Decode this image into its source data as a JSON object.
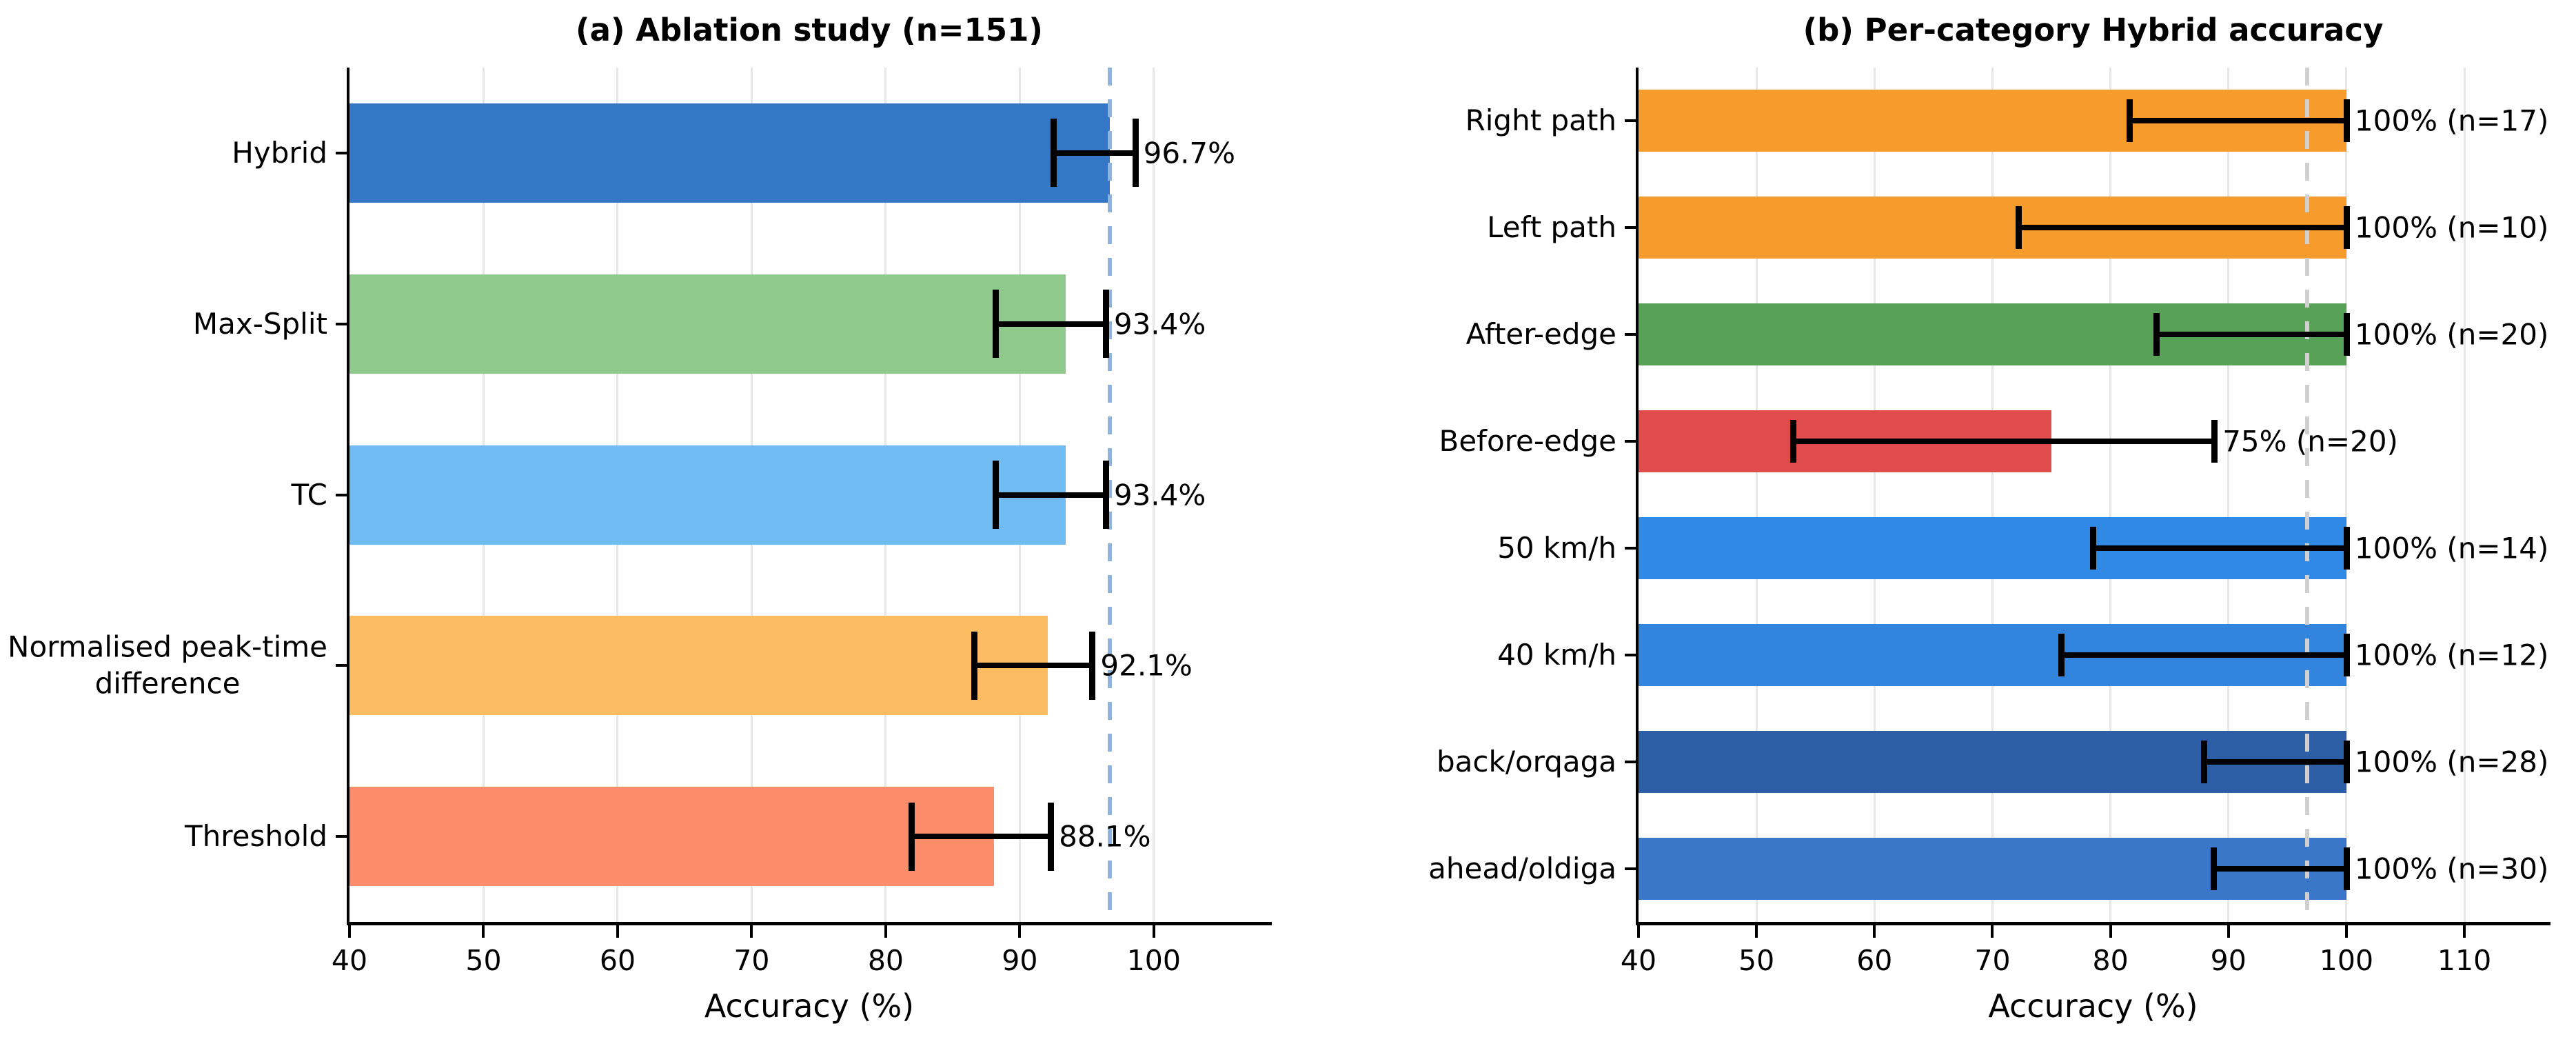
{
  "figure": {
    "background": "#ffffff",
    "error_bar_color": "#000000",
    "grid_color": "#e7e7e7",
    "spine_color": "#000000"
  },
  "chart_data": [
    {
      "type": "bar",
      "orientation": "horizontal",
      "title": "(a) Ablation study (n=151)",
      "xlabel": "Accuracy (%)",
      "xlim": [
        40,
        108.8
      ],
      "xticks": [
        40,
        50,
        60,
        70,
        80,
        90,
        100
      ],
      "grid": true,
      "legend": "none",
      "ref_line": {
        "value": 96.7,
        "color": "#8fb3dc",
        "style": "dashed"
      },
      "categories": [
        "Hybrid",
        "Max-Split",
        "TC",
        "Normalised peak-time\ndifference",
        "Threshold"
      ],
      "values": [
        96.7,
        93.4,
        93.4,
        92.1,
        88.1
      ],
      "rows": [
        {
          "category": "Hybrid",
          "value": 96.7,
          "label": "96.7%",
          "err_lo": 92.5,
          "err_hi": 98.6,
          "color": "#3377c6"
        },
        {
          "category": "Max-Split",
          "value": 93.4,
          "label": "93.4%",
          "err_lo": 88.2,
          "err_hi": 96.4,
          "color": "#8fc98b"
        },
        {
          "category": "TC",
          "value": 93.4,
          "label": "93.4%",
          "err_lo": 88.2,
          "err_hi": 96.4,
          "color": "#70bcf2"
        },
        {
          "category": "Normalised peak-time\ndifference",
          "value": 92.1,
          "label": "92.1%",
          "err_lo": 86.6,
          "err_hi": 95.4,
          "color": "#fcbd62"
        },
        {
          "category": "Threshold",
          "value": 88.1,
          "label": "88.1%",
          "err_lo": 81.9,
          "err_hi": 92.3,
          "color": "#fb8d6a"
        }
      ]
    },
    {
      "type": "bar",
      "orientation": "horizontal",
      "title": "(b) Per-category Hybrid accuracy",
      "xlabel": "Accuracy (%)",
      "xlim": [
        40,
        117.3
      ],
      "xticks": [
        40,
        50,
        60,
        70,
        80,
        90,
        100,
        110
      ],
      "grid": true,
      "legend": "none",
      "ref_line": {
        "value": 96.7,
        "color": "#d0d0d0",
        "style": "dashed"
      },
      "categories": [
        "Right path",
        "Left path",
        "After-edge",
        "Before-edge",
        "50 km/h",
        "40 km/h",
        "back/orqaga",
        "ahead/oldiga"
      ],
      "values": [
        100,
        100,
        100,
        75,
        100,
        100,
        100,
        100
      ],
      "rows": [
        {
          "category": "Right path",
          "value": 100,
          "n": 17,
          "label": "100% (n=17)",
          "err_lo": 81.6,
          "err_hi": 100,
          "color": "#f89b2d"
        },
        {
          "category": "Left path",
          "value": 100,
          "n": 10,
          "label": "100% (n=10)",
          "err_lo": 72.2,
          "err_hi": 100,
          "color": "#f89b2d"
        },
        {
          "category": "After-edge",
          "value": 100,
          "n": 20,
          "label": "100% (n=20)",
          "err_lo": 83.9,
          "err_hi": 100,
          "color": "#57a257"
        },
        {
          "category": "Before-edge",
          "value": 75,
          "n": 20,
          "label": "75% (n=20)",
          "err_lo": 53.1,
          "err_hi": 88.8,
          "color": "#e04b4b"
        },
        {
          "category": "50 km/h",
          "value": 100,
          "n": 14,
          "label": "100% (n=14)",
          "err_lo": 78.5,
          "err_hi": 100,
          "color": "#3189e6"
        },
        {
          "category": "40 km/h",
          "value": 100,
          "n": 12,
          "label": "100% (n=12)",
          "err_lo": 75.8,
          "err_hi": 100,
          "color": "#3384dc"
        },
        {
          "category": "back/orqaga",
          "value": 100,
          "n": 28,
          "label": "100% (n=28)",
          "err_lo": 87.9,
          "err_hi": 100,
          "color": "#2b5ea4"
        },
        {
          "category": "ahead/oldiga",
          "value": 100,
          "n": 30,
          "label": "100% (n=30)",
          "err_lo": 88.7,
          "err_hi": 100,
          "color": "#3a77c8"
        }
      ]
    }
  ]
}
